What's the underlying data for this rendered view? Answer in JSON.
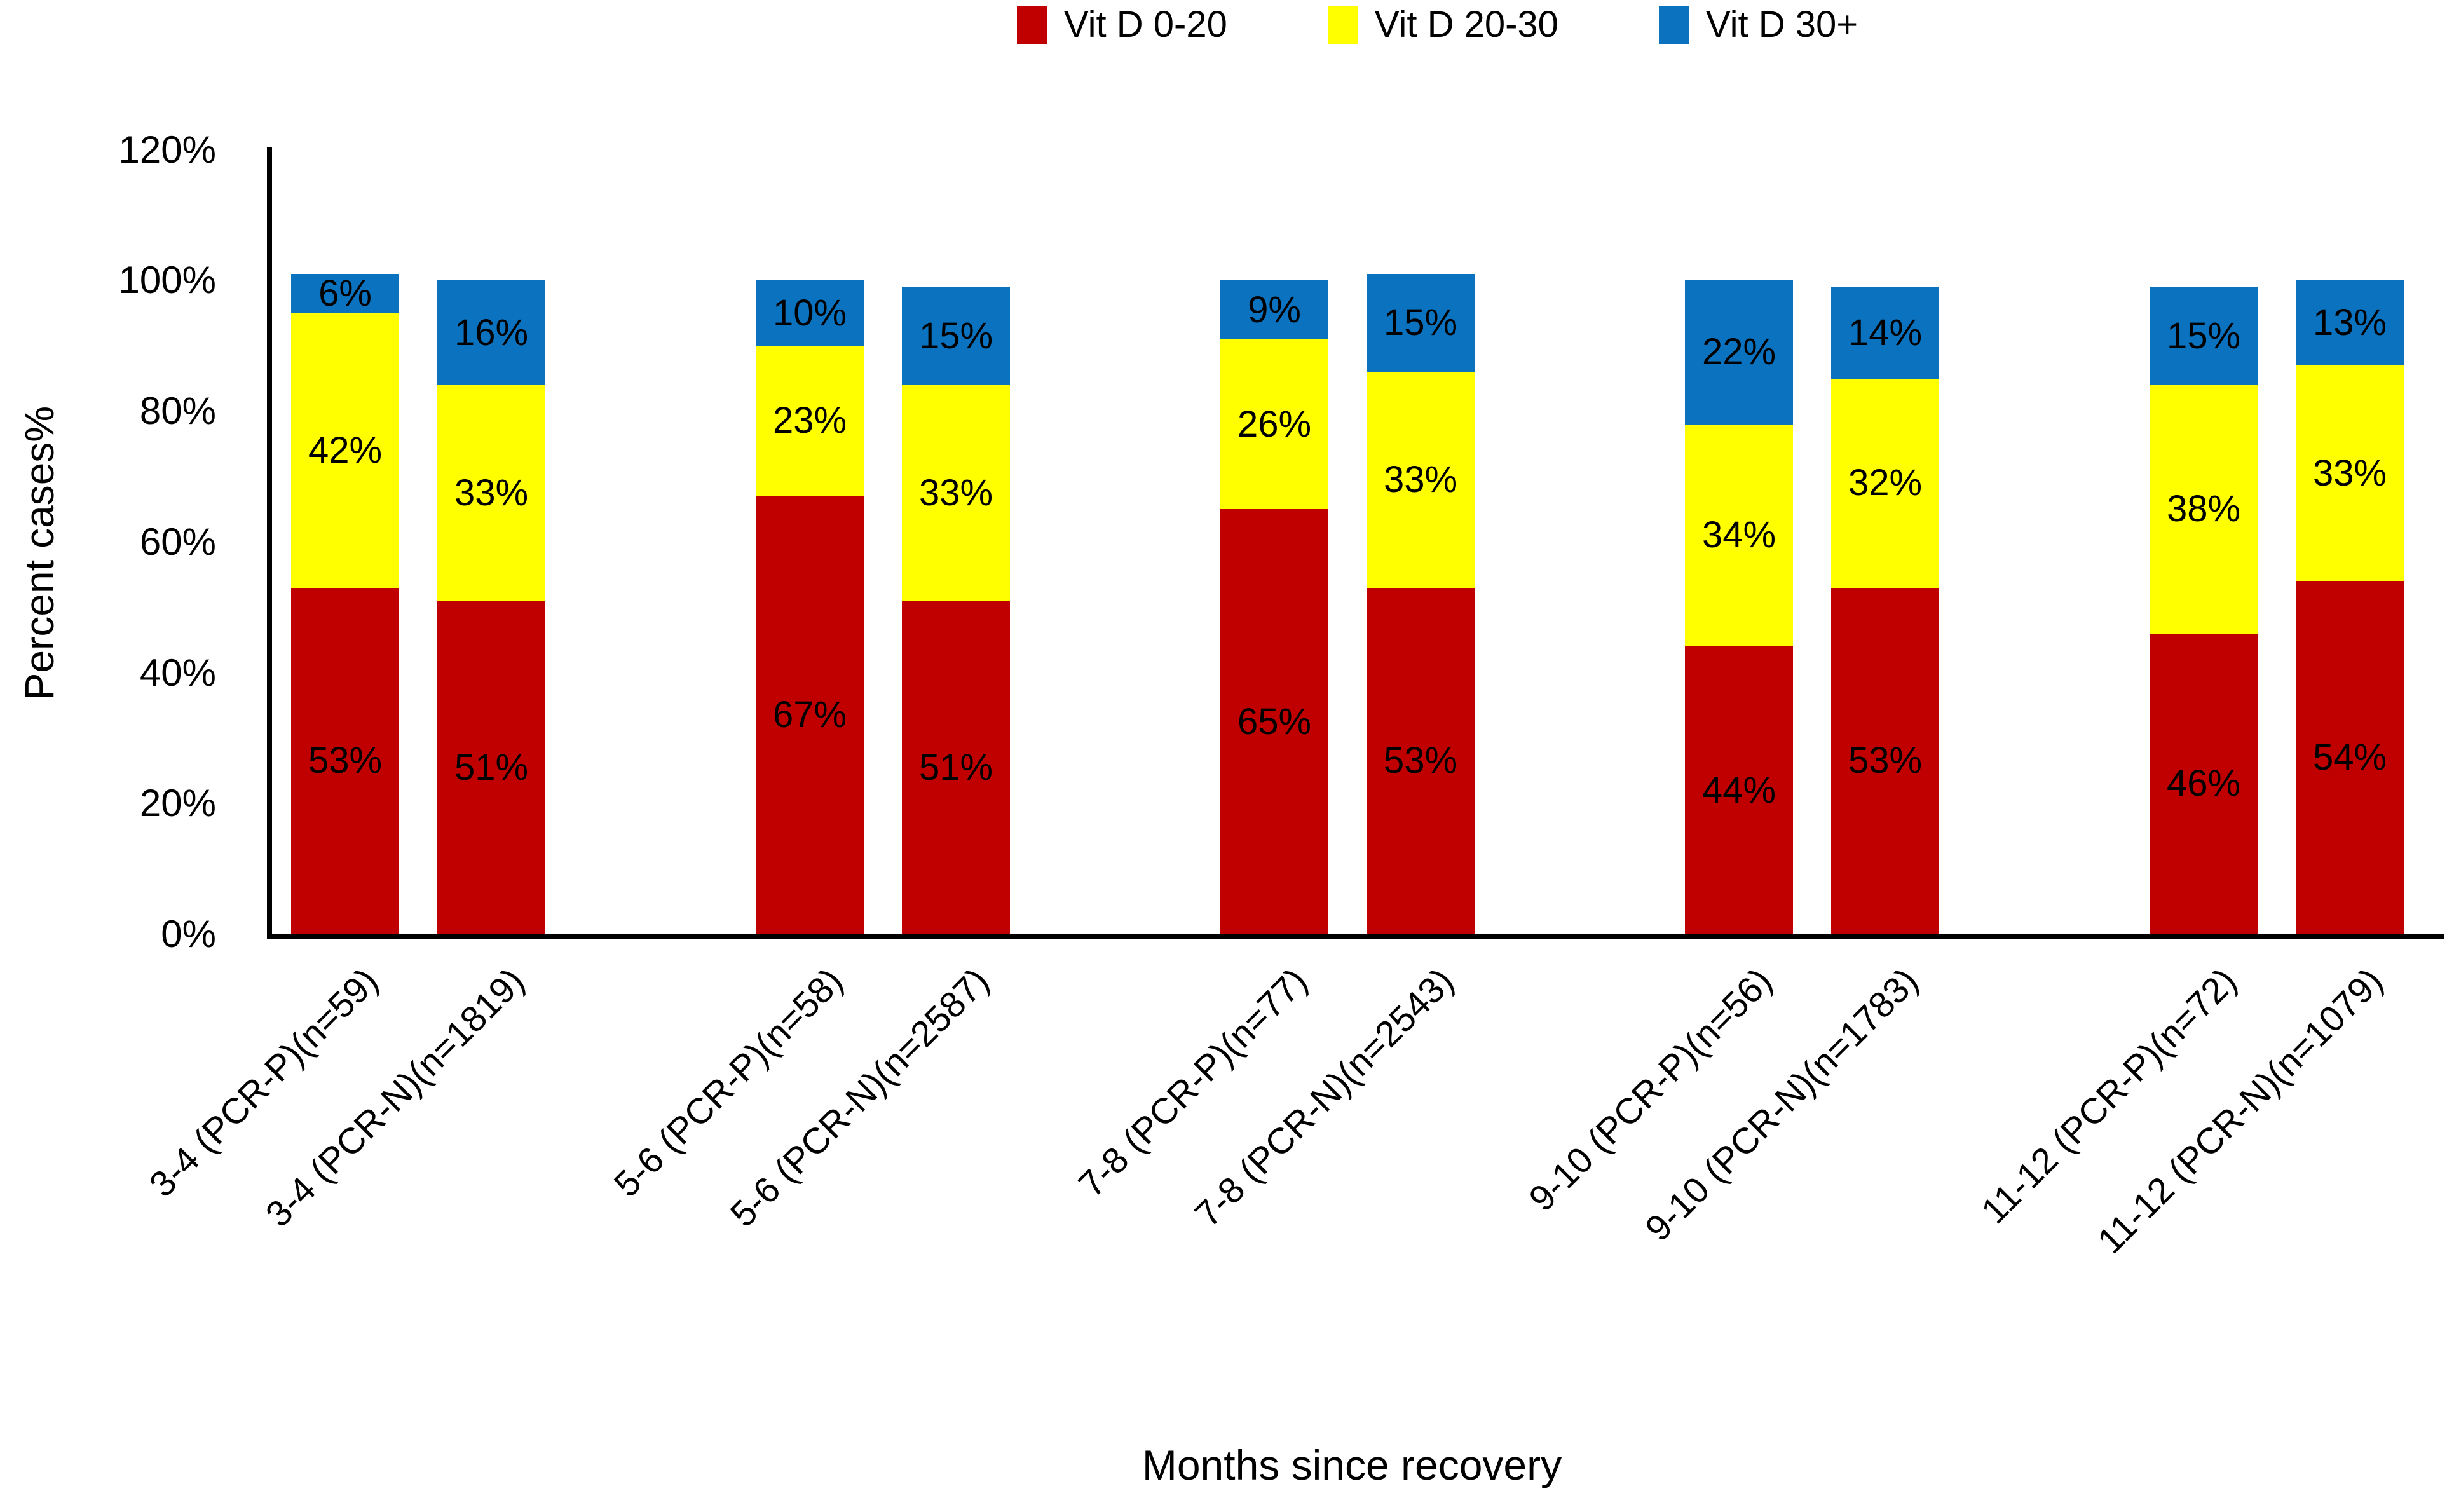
{
  "chart_data": {
    "type": "bar",
    "stacked": true,
    "xlabel": "Months since recovery",
    "ylabel": "Percent cases%",
    "ylim": [
      0,
      120
    ],
    "yticks": [
      0,
      20,
      40,
      60,
      80,
      100,
      120
    ],
    "ytick_labels": [
      "0%",
      "20%",
      "40%",
      "60%",
      "80%",
      "100%",
      "120%"
    ],
    "grid": false,
    "legend_position": "top",
    "data_label_format": "percent-inside-segment",
    "axis_color": "#000000",
    "categories": [
      "3-4 (PCR-P)(n=59)",
      "3-4 (PCR-N)(n=1819)",
      "5-6 (PCR-P)(n=58)",
      "5-6 (PCR-N)(n=2587)",
      "7-8 (PCR-P)(n=77)",
      "7-8 (PCR-N)(n=2543)",
      "9-10 (PCR-P)(n=56)",
      "9-10 (PCR-N)(n=1783)",
      "11-12 (PCR-P)(n=72)",
      "11-12 (PCR-N)(n=1079)"
    ],
    "series": [
      {
        "name": "Vit D 0-20",
        "color": "#C00000",
        "values": [
          53,
          51,
          67,
          51,
          65,
          53,
          44,
          53,
          46,
          54
        ]
      },
      {
        "name": "Vit D 20-30",
        "color": "#FFFF00",
        "values": [
          42,
          33,
          23,
          33,
          26,
          33,
          34,
          32,
          38,
          33
        ]
      },
      {
        "name": "Vit D 30+",
        "color": "#0A72BE",
        "values": [
          6,
          16,
          10,
          15,
          9,
          15,
          22,
          14,
          15,
          13
        ]
      }
    ]
  }
}
